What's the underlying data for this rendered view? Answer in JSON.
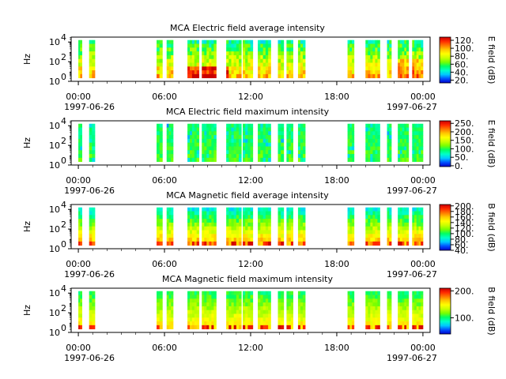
{
  "colors": {
    "stops": [
      "#0000c8",
      "#0050ff",
      "#00c8ff",
      "#00ffc8",
      "#00ff64",
      "#78ff00",
      "#c8ff00",
      "#ffff00",
      "#ffc800",
      "#ff7800",
      "#ff2800",
      "#c80000"
    ]
  },
  "chart_data": [
    {
      "type": "heatmap",
      "title": "MCA  Electric field average intensity",
      "ylabel": "Hz",
      "colorbar_label": "E field (dB)",
      "colorbar_ticks": [
        "20.",
        "40.",
        "60.",
        "80.",
        "100.",
        "120."
      ],
      "colorbar_range": [
        13,
        128
      ],
      "x_tick_labels": [
        "00:00",
        "06:00",
        "12:00",
        "18:00",
        "00:00"
      ],
      "x_date_labels": [
        "1997-06-26",
        "1997-06-27"
      ],
      "y_tick_labels": [
        "10",
        "10",
        "10"
      ],
      "y_tick_exponents": [
        "0",
        "2",
        "4"
      ],
      "xlim": [
        -0.5,
        24.5
      ],
      "ylim_log10": [
        0,
        4.5
      ],
      "profile": "avgE",
      "segments": [
        [
          0.0,
          0.25
        ],
        [
          0.75,
          1.15
        ],
        [
          5.45,
          5.85
        ],
        [
          6.15,
          6.6
        ],
        [
          7.6,
          8.4
        ],
        [
          8.6,
          9.6
        ],
        [
          10.3,
          11.35
        ],
        [
          11.45,
          12.15
        ],
        [
          12.5,
          13.4
        ],
        [
          13.9,
          14.3
        ],
        [
          14.5,
          14.95
        ],
        [
          15.3,
          15.8
        ],
        [
          18.75,
          19.2
        ],
        [
          20.0,
          21.0
        ],
        [
          21.5,
          21.8
        ],
        [
          22.25,
          23.0
        ],
        [
          23.25,
          24.0
        ]
      ]
    },
    {
      "type": "heatmap",
      "title": "MCA  Electric field maximum intensity",
      "ylabel": "Hz",
      "colorbar_label": "E field (dB)",
      "colorbar_ticks": [
        "0.",
        "50.",
        "100.",
        "150.",
        "200.",
        "250."
      ],
      "colorbar_range": [
        -5,
        265
      ],
      "x_tick_labels": [
        "00:00",
        "06:00",
        "12:00",
        "18:00",
        "00:00"
      ],
      "x_date_labels": [
        "1997-06-26",
        "1997-06-27"
      ],
      "y_tick_labels": [
        "10",
        "10",
        "10"
      ],
      "y_tick_exponents": [
        "0",
        "2",
        "4"
      ],
      "xlim": [
        -0.5,
        24.5
      ],
      "ylim_log10": [
        0,
        4.5
      ],
      "profile": "maxE",
      "segments": [
        [
          0.0,
          0.25
        ],
        [
          0.75,
          1.15
        ],
        [
          5.45,
          5.85
        ],
        [
          6.15,
          6.6
        ],
        [
          7.6,
          8.4
        ],
        [
          8.6,
          9.6
        ],
        [
          10.3,
          11.35
        ],
        [
          11.45,
          12.15
        ],
        [
          12.5,
          13.4
        ],
        [
          13.9,
          14.3
        ],
        [
          14.5,
          14.95
        ],
        [
          15.3,
          15.8
        ],
        [
          18.75,
          19.2
        ],
        [
          20.0,
          21.0
        ],
        [
          21.5,
          21.8
        ],
        [
          22.25,
          23.0
        ],
        [
          23.25,
          24.0
        ]
      ]
    },
    {
      "type": "heatmap",
      "title": "MCA  Magnetic field average intensity",
      "ylabel": "Hz",
      "colorbar_label": "B field (dB)",
      "colorbar_ticks": [
        "40.",
        "60.",
        "80.",
        "100.",
        "120.",
        "140.",
        "160.",
        "180.",
        "200."
      ],
      "colorbar_range": [
        40,
        205
      ],
      "x_tick_labels": [
        "00:00",
        "06:00",
        "12:00",
        "18:00",
        "00:00"
      ],
      "x_date_labels": [
        "1997-06-26",
        "1997-06-27"
      ],
      "y_tick_labels": [
        "10",
        "10",
        "10"
      ],
      "y_tick_exponents": [
        "0",
        "2",
        "4"
      ],
      "xlim": [
        -0.5,
        24.5
      ],
      "ylim_log10": [
        0,
        4.5
      ],
      "profile": "avgB",
      "segments": [
        [
          0.0,
          0.25
        ],
        [
          0.75,
          1.15
        ],
        [
          5.45,
          5.85
        ],
        [
          6.15,
          6.6
        ],
        [
          7.6,
          8.4
        ],
        [
          8.6,
          9.6
        ],
        [
          10.3,
          11.35
        ],
        [
          11.45,
          12.15
        ],
        [
          12.5,
          13.4
        ],
        [
          13.9,
          14.3
        ],
        [
          14.5,
          14.95
        ],
        [
          15.3,
          15.8
        ],
        [
          18.75,
          19.2
        ],
        [
          20.0,
          21.0
        ],
        [
          21.5,
          21.8
        ],
        [
          22.25,
          23.0
        ],
        [
          23.25,
          24.0
        ]
      ]
    },
    {
      "type": "heatmap",
      "title": "MCA  Magnetic field maximum intensity",
      "ylabel": "Hz",
      "colorbar_label": "B field (dB)",
      "colorbar_ticks": [
        "100.",
        "200."
      ],
      "colorbar_range": [
        40,
        210
      ],
      "x_tick_labels": [
        "00:00",
        "06:00",
        "12:00",
        "18:00",
        "00:00"
      ],
      "x_date_labels": [
        "1997-06-26",
        "1997-06-27"
      ],
      "y_tick_labels": [
        "10",
        "10",
        "10"
      ],
      "y_tick_exponents": [
        "0",
        "2",
        "4"
      ],
      "xlim": [
        -0.5,
        24.5
      ],
      "ylim_log10": [
        0,
        4.5
      ],
      "profile": "maxB",
      "segments": [
        [
          0.0,
          0.25
        ],
        [
          0.75,
          1.15
        ],
        [
          5.45,
          5.85
        ],
        [
          6.15,
          6.6
        ],
        [
          7.6,
          8.4
        ],
        [
          8.6,
          9.6
        ],
        [
          10.3,
          11.35
        ],
        [
          11.45,
          12.15
        ],
        [
          12.5,
          13.4
        ],
        [
          13.9,
          14.3
        ],
        [
          14.5,
          14.95
        ],
        [
          15.3,
          15.8
        ],
        [
          18.75,
          19.2
        ],
        [
          20.0,
          21.0
        ],
        [
          21.5,
          21.8
        ],
        [
          22.25,
          23.0
        ],
        [
          23.25,
          24.0
        ]
      ]
    }
  ]
}
